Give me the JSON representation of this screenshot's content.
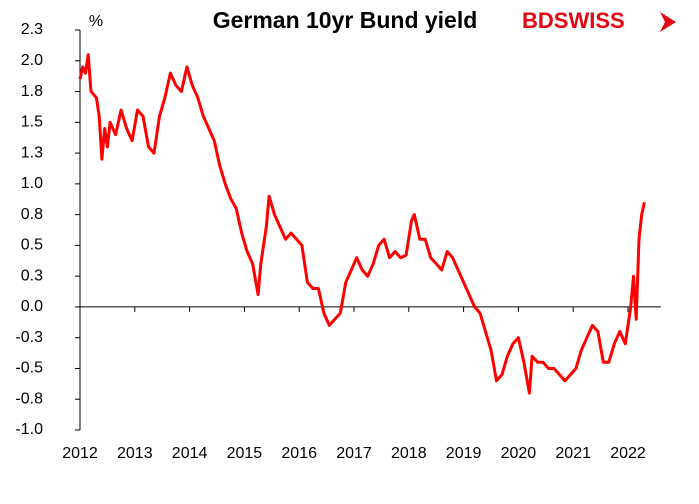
{
  "chart_data": {
    "type": "line",
    "title": "German  10yr Bund yield",
    "y_unit": "%",
    "logo": "BDSWISS",
    "color": "#ff0000",
    "x": [
      2012.0,
      2012.05,
      2012.1,
      2012.15,
      2012.2,
      2012.3,
      2012.35,
      2012.4,
      2012.45,
      2012.5,
      2012.55,
      2012.65,
      2012.75,
      2012.85,
      2012.95,
      2013.05,
      2013.15,
      2013.25,
      2013.35,
      2013.45,
      2013.55,
      2013.65,
      2013.75,
      2013.85,
      2013.95,
      2014.05,
      2014.15,
      2014.25,
      2014.35,
      2014.45,
      2014.55,
      2014.65,
      2014.75,
      2014.85,
      2014.95,
      2015.05,
      2015.15,
      2015.25,
      2015.3,
      2015.4,
      2015.45,
      2015.55,
      2015.65,
      2015.75,
      2015.85,
      2015.95,
      2016.05,
      2016.15,
      2016.25,
      2016.35,
      2016.45,
      2016.55,
      2016.65,
      2016.75,
      2016.85,
      2016.95,
      2017.05,
      2017.15,
      2017.25,
      2017.35,
      2017.45,
      2017.55,
      2017.65,
      2017.75,
      2017.85,
      2017.95,
      2018.05,
      2018.1,
      2018.2,
      2018.3,
      2018.4,
      2018.5,
      2018.6,
      2018.7,
      2018.8,
      2018.9,
      2019.0,
      2019.1,
      2019.2,
      2019.3,
      2019.4,
      2019.5,
      2019.6,
      2019.7,
      2019.8,
      2019.9,
      2020.0,
      2020.1,
      2020.2,
      2020.25,
      2020.35,
      2020.45,
      2020.55,
      2020.65,
      2020.75,
      2020.85,
      2020.95,
      2021.05,
      2021.15,
      2021.25,
      2021.35,
      2021.45,
      2021.55,
      2021.65,
      2021.75,
      2021.85,
      2021.95,
      2022.0,
      2022.05,
      2022.1,
      2022.15,
      2022.2,
      2022.25,
      2022.3
    ],
    "values": [
      1.85,
      1.95,
      1.9,
      2.05,
      1.75,
      1.7,
      1.55,
      1.2,
      1.45,
      1.3,
      1.5,
      1.4,
      1.6,
      1.45,
      1.35,
      1.6,
      1.55,
      1.3,
      1.25,
      1.55,
      1.7,
      1.9,
      1.8,
      1.75,
      1.95,
      1.8,
      1.7,
      1.55,
      1.45,
      1.35,
      1.15,
      1.0,
      0.88,
      0.8,
      0.6,
      0.45,
      0.35,
      0.1,
      0.35,
      0.65,
      0.9,
      0.75,
      0.65,
      0.55,
      0.6,
      0.55,
      0.5,
      0.2,
      0.15,
      0.15,
      -0.05,
      -0.15,
      -0.1,
      -0.05,
      0.2,
      0.3,
      0.4,
      0.3,
      0.25,
      0.35,
      0.5,
      0.55,
      0.4,
      0.45,
      0.4,
      0.42,
      0.7,
      0.75,
      0.55,
      0.55,
      0.4,
      0.35,
      0.3,
      0.45,
      0.4,
      0.3,
      0.2,
      0.1,
      0.0,
      -0.05,
      -0.2,
      -0.35,
      -0.6,
      -0.55,
      -0.4,
      -0.3,
      -0.25,
      -0.45,
      -0.7,
      -0.4,
      -0.45,
      -0.45,
      -0.5,
      -0.5,
      -0.55,
      -0.6,
      -0.55,
      -0.5,
      -0.35,
      -0.25,
      -0.15,
      -0.2,
      -0.45,
      -0.45,
      -0.3,
      -0.2,
      -0.3,
      -0.15,
      0.0,
      0.25,
      -0.1,
      0.55,
      0.75,
      0.85
    ],
    "xlim": [
      2012,
      2022.6
    ],
    "xticks": [
      2012,
      2013,
      2014,
      2015,
      2016,
      2017,
      2018,
      2019,
      2020,
      2021,
      2022
    ],
    "ylim": [
      -1.0,
      2.25
    ],
    "yticks": [
      {
        "value": 2.25,
        "label": "2.3"
      },
      {
        "value": 2.0,
        "label": "2.0"
      },
      {
        "value": 1.75,
        "label": "1.8"
      },
      {
        "value": 1.5,
        "label": "1.5"
      },
      {
        "value": 1.25,
        "label": "1.3"
      },
      {
        "value": 1.0,
        "label": "1.0"
      },
      {
        "value": 0.75,
        "label": "0.8"
      },
      {
        "value": 0.5,
        "label": "0.5"
      },
      {
        "value": 0.25,
        "label": "0.3"
      },
      {
        "value": 0.0,
        "label": "0.0"
      },
      {
        "value": -0.25,
        "label": "-0.3"
      },
      {
        "value": -0.5,
        "label": "-0.5"
      },
      {
        "value": -0.75,
        "label": "-0.8"
      },
      {
        "value": -1.0,
        "label": "-1.0"
      }
    ],
    "grid": false
  }
}
